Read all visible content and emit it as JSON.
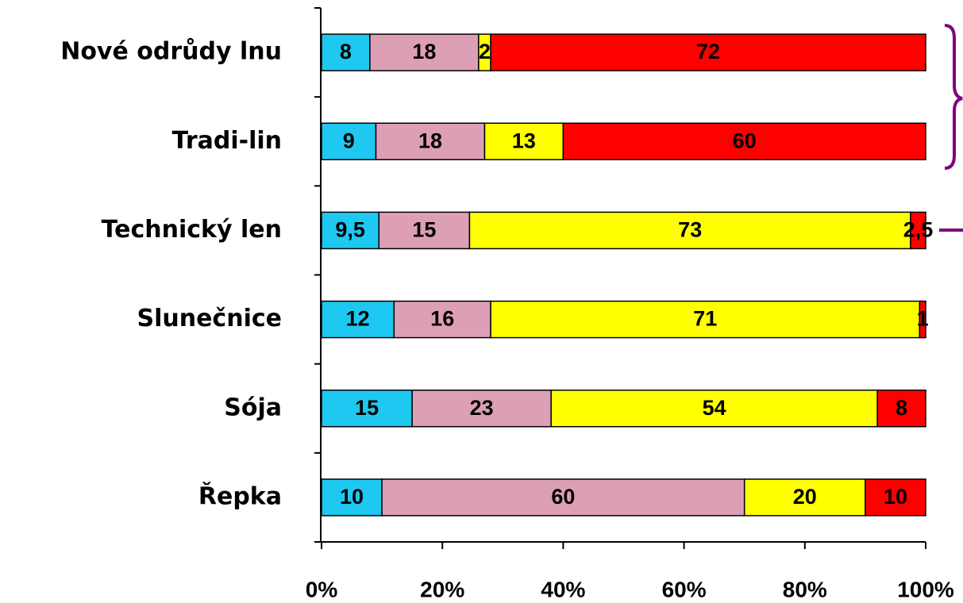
{
  "chart_data": {
    "type": "stacked_bar_horizontal",
    "categories": [
      "Nové odrůdy lnu",
      "Tradi-lin",
      "Technický len",
      "Slunečnice",
      "Sója",
      "Řepka"
    ],
    "series": [
      {
        "color": "#1ec8f0",
        "values": [
          8,
          9,
          9.5,
          12,
          15,
          10
        ],
        "value_labels": [
          "8",
          "9",
          "9,5",
          "12",
          "15",
          "10"
        ]
      },
      {
        "color": "#dd9fb6",
        "values": [
          18,
          18,
          15,
          16,
          23,
          60
        ]
      },
      {
        "color": "#ffff00",
        "values": [
          2,
          13,
          73,
          71,
          54,
          20
        ]
      },
      {
        "color": "#ff0000",
        "values": [
          72,
          60,
          2.5,
          1,
          8,
          10
        ],
        "value_labels": [
          "72",
          "60",
          "2,5",
          "1",
          "8",
          "10"
        ]
      }
    ],
    "xlim": [
      0,
      100
    ],
    "xticks": [
      {
        "value": 0,
        "label": "0%"
      },
      {
        "value": 20,
        "label": "20%"
      },
      {
        "value": 40,
        "label": "40%"
      },
      {
        "value": 60,
        "label": "60%"
      },
      {
        "value": 80,
        "label": "80%"
      },
      {
        "value": 100,
        "label": "100%"
      }
    ]
  }
}
